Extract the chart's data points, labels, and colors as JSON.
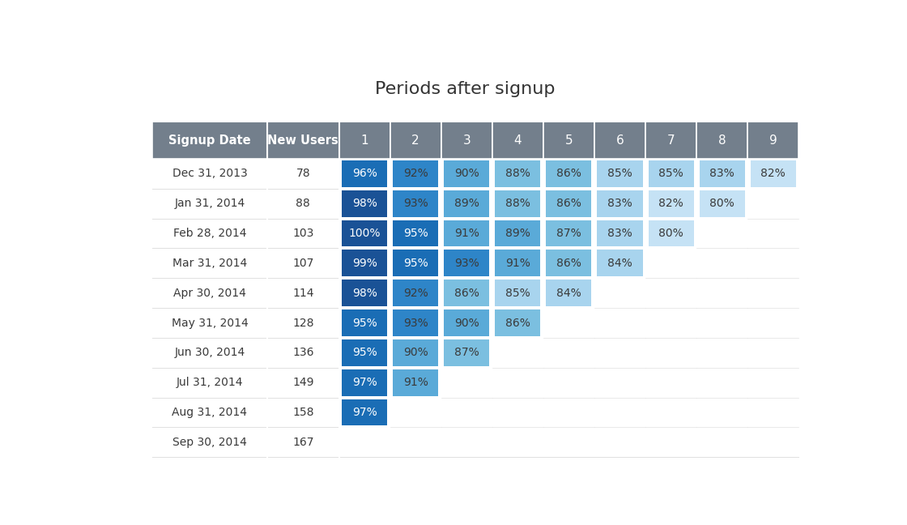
{
  "title": "Periods after signup",
  "title_fontsize": 16,
  "header_bg": "#737f8c",
  "header_text_color": "#ffffff",
  "col_headers": [
    "Signup Date",
    "New Users",
    "1",
    "2",
    "3",
    "4",
    "5",
    "6",
    "7",
    "8",
    "9"
  ],
  "rows": [
    {
      "date": "Dec 31, 2013",
      "users": "78",
      "values": [
        96,
        92,
        90,
        88,
        86,
        85,
        85,
        83,
        82
      ]
    },
    {
      "date": "Jan 31, 2014",
      "users": "88",
      "values": [
        98,
        93,
        89,
        88,
        86,
        83,
        82,
        80,
        null
      ]
    },
    {
      "date": "Feb 28, 2014",
      "users": "103",
      "values": [
        100,
        95,
        91,
        89,
        87,
        83,
        80,
        null,
        null
      ]
    },
    {
      "date": "Mar 31, 2014",
      "users": "107",
      "values": [
        99,
        95,
        93,
        91,
        86,
        84,
        null,
        null,
        null
      ]
    },
    {
      "date": "Apr 30, 2014",
      "users": "114",
      "values": [
        98,
        92,
        86,
        85,
        84,
        null,
        null,
        null,
        null
      ]
    },
    {
      "date": "May 31, 2014",
      "users": "128",
      "values": [
        95,
        93,
        90,
        86,
        null,
        null,
        null,
        null,
        null
      ]
    },
    {
      "date": "Jun 30, 2014",
      "users": "136",
      "values": [
        95,
        90,
        87,
        null,
        null,
        null,
        null,
        null,
        null
      ]
    },
    {
      "date": "Jul 31, 2014",
      "users": "149",
      "values": [
        97,
        91,
        null,
        null,
        null,
        null,
        null,
        null,
        null
      ]
    },
    {
      "date": "Aug 31, 2014",
      "users": "158",
      "values": [
        97,
        null,
        null,
        null,
        null,
        null,
        null,
        null,
        null
      ]
    },
    {
      "date": "Sep 30, 2014",
      "users": "167",
      "values": [
        null,
        null,
        null,
        null,
        null,
        null,
        null,
        null,
        null
      ]
    }
  ],
  "color_thresholds": [
    [
      98,
      "#1a5296"
    ],
    [
      95,
      "#1a6db5"
    ],
    [
      92,
      "#2e85c8"
    ],
    [
      89,
      "#5aaad8"
    ],
    [
      86,
      "#7bbfe0"
    ],
    [
      83,
      "#a8d4ee"
    ],
    [
      80,
      "#c5e2f5"
    ],
    [
      0,
      "#ddeef8"
    ]
  ],
  "text_dark": "#3a3a3a",
  "text_white": "#ffffff",
  "cell_border": "#ffffff",
  "row_border": "#e0e0e0",
  "bg_color": "#ffffff"
}
